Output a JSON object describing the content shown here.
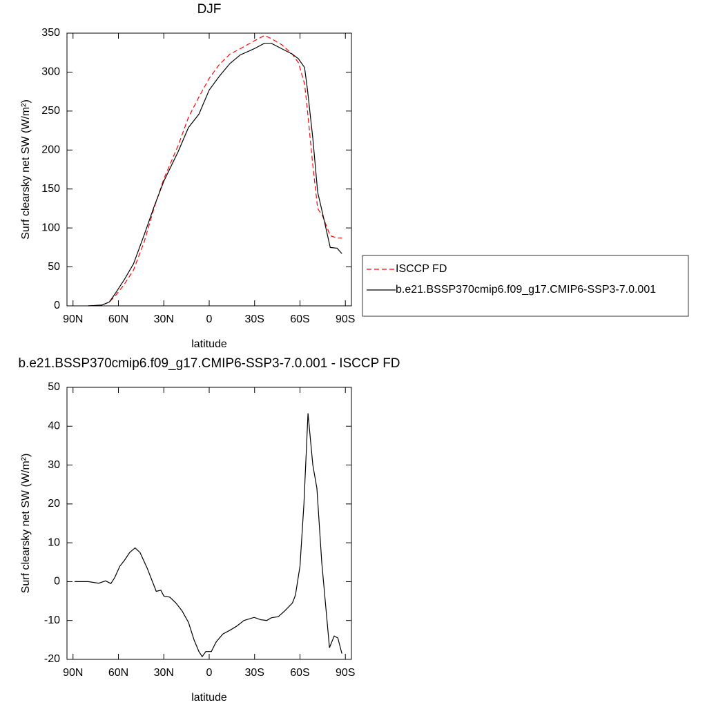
{
  "chart_data": [
    {
      "type": "line",
      "title": "DJF",
      "xlabel": "latitude",
      "ylabel": "Surf clearsky net SW (W/m²)",
      "x": [
        80,
        71,
        66,
        62,
        56,
        50,
        43,
        36.5,
        30,
        20.5,
        13.7,
        6.8,
        0,
        -6.8,
        -13.7,
        -20.5,
        -29.7,
        -36.5,
        -41,
        -48,
        -55,
        -59,
        -63,
        -65,
        -68.5,
        -71.7,
        -75,
        -80,
        -84.5,
        -87.7
      ],
      "series": [
        {
          "name": "ISCCP FD",
          "color": "#ff0000",
          "style": "dashed",
          "values": [
            0,
            1,
            5,
            13,
            28,
            46,
            82,
            125,
            163,
            206,
            242,
            268,
            292,
            310,
            323,
            330,
            340,
            347,
            343,
            335,
            323,
            312,
            285,
            250,
            180,
            125,
            115,
            90,
            87,
            87
          ]
        },
        {
          "name": "b.e21.BSSP370cmip6.f09_g17.CMIP6-SSP3-7.0.001",
          "color": "#000000",
          "style": "solid",
          "values": [
            0,
            1,
            5,
            16,
            34,
            54,
            91,
            127,
            160,
            198,
            229,
            246,
            277,
            295,
            311,
            322,
            330,
            337,
            337,
            330,
            323,
            317,
            306,
            277,
            215,
            146,
            118,
            75,
            74,
            67
          ]
        }
      ],
      "xlim": [
        94,
        -94
      ],
      "xticks": [
        {
          "value": 90,
          "label": "90N"
        },
        {
          "value": 60,
          "label": "60N"
        },
        {
          "value": 30,
          "label": "30N"
        },
        0,
        {
          "value": -30,
          "label": "30S"
        },
        {
          "value": -60,
          "label": "60S"
        },
        {
          "value": -90,
          "label": "90S"
        }
      ],
      "ylim": [
        0,
        350
      ],
      "yticks": [
        0,
        50,
        100,
        150,
        200,
        250,
        300,
        350
      ],
      "legend": "right"
    },
    {
      "type": "line",
      "title": "b.e21.BSSP370cmip6.f09_g17.CMIP6-SSP3-7.0.001 - ISCCP FD",
      "xlabel": "latitude",
      "ylabel": "Surf clearsky net SW (W/m²)",
      "x": [
        89,
        80,
        73,
        68.5,
        65,
        62.5,
        59,
        56,
        52.5,
        49,
        45.7,
        41,
        38,
        35,
        32,
        30,
        26,
        22,
        18,
        13.7,
        10,
        6.8,
        4.6,
        2.3,
        -1.4,
        -4.6,
        -9,
        -13.7,
        -18,
        -23,
        -29.7,
        -34,
        -38,
        -41,
        -45.7,
        -50,
        -55,
        -57,
        -60,
        -62.6,
        -65.3,
        -68.5,
        -71.2,
        -74.4,
        -79.5,
        -82.6,
        -85,
        -87.7
      ],
      "values": [
        0,
        0,
        -0.4,
        0.2,
        -0.5,
        1,
        4,
        5.5,
        7.5,
        8.7,
        7.5,
        3.5,
        0.5,
        -2.5,
        -2.2,
        -3.7,
        -4,
        -5.5,
        -7.5,
        -10.5,
        -15,
        -18,
        -19.3,
        -18,
        -18,
        -15.5,
        -13.5,
        -12.5,
        -11.5,
        -10,
        -9.2,
        -9.8,
        -10,
        -9.3,
        -9,
        -7.5,
        -5.5,
        -3.5,
        4,
        20,
        43.3,
        30,
        24,
        5,
        -17,
        -14,
        -14.5,
        -18.5
      ],
      "color": "#000000",
      "xlim": [
        94,
        -94
      ],
      "xticks": [
        {
          "value": 90,
          "label": "90N"
        },
        {
          "value": 60,
          "label": "60N"
        },
        {
          "value": 30,
          "label": "30N"
        },
        0,
        {
          "value": -30,
          "label": "30S"
        },
        {
          "value": -60,
          "label": "60S"
        },
        {
          "value": -90,
          "label": "90S"
        }
      ],
      "ylim": [
        -20,
        50
      ],
      "yticks": [
        -20,
        -10,
        0,
        10,
        20,
        30,
        40,
        50
      ]
    }
  ]
}
